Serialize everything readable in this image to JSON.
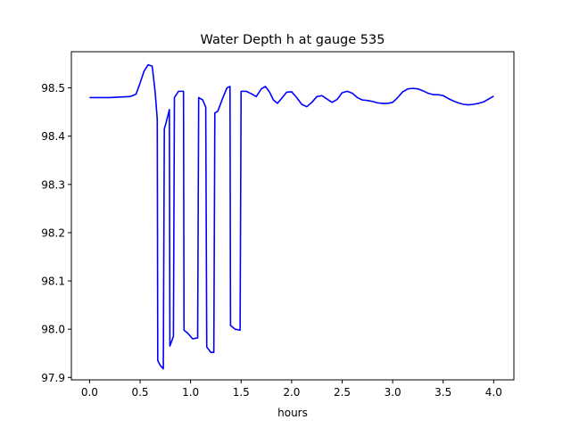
{
  "chart_data": {
    "type": "line",
    "title": "Water Depth h at gauge 535",
    "xlabel": "hours",
    "ylabel": "",
    "xlim": [
      -0.18,
      4.2
    ],
    "ylim": [
      97.895,
      98.575
    ],
    "xticks": [
      0.0,
      0.5,
      1.0,
      1.5,
      2.0,
      2.5,
      3.0,
      3.5,
      4.0
    ],
    "xtick_labels": [
      "0.0",
      "0.5",
      "1.0",
      "1.5",
      "2.0",
      "2.5",
      "3.0",
      "3.5",
      "4.0"
    ],
    "yticks": [
      97.9,
      98.0,
      98.1,
      98.2,
      98.3,
      98.4,
      98.5
    ],
    "ytick_labels": [
      "97.9",
      "98.0",
      "98.1",
      "98.2",
      "98.3",
      "98.4",
      "98.5"
    ],
    "grid": false,
    "color": "#0000ff",
    "series": [
      {
        "x": [
          0.0,
          0.2,
          0.4,
          0.46,
          0.5,
          0.54,
          0.58,
          0.62,
          0.65,
          0.67,
          0.675,
          0.7,
          0.73,
          0.74,
          0.76,
          0.79,
          0.795,
          0.83,
          0.84,
          0.88,
          0.93,
          0.935,
          0.97,
          1.02,
          1.07,
          1.08,
          1.12,
          1.15,
          1.16,
          1.2,
          1.23,
          1.24,
          1.27,
          1.32,
          1.36,
          1.39,
          1.395,
          1.44,
          1.49,
          1.5,
          1.55,
          1.6,
          1.65,
          1.7,
          1.74,
          1.78,
          1.82,
          1.86,
          1.9,
          1.95,
          2.0,
          2.05,
          2.1,
          2.15,
          2.2,
          2.25,
          2.3,
          2.35,
          2.4,
          2.45,
          2.5,
          2.55,
          2.6,
          2.65,
          2.7,
          2.75,
          2.8,
          2.85,
          2.9,
          2.95,
          3.0,
          3.05,
          3.1,
          3.15,
          3.2,
          3.25,
          3.3,
          3.35,
          3.4,
          3.45,
          3.5,
          3.55,
          3.6,
          3.65,
          3.7,
          3.75,
          3.8,
          3.85,
          3.9,
          3.95,
          4.0
        ],
        "y": [
          98.48,
          98.48,
          98.482,
          98.487,
          98.51,
          98.535,
          98.548,
          98.545,
          98.49,
          98.435,
          97.935,
          97.925,
          97.918,
          98.415,
          98.43,
          98.455,
          97.965,
          97.985,
          98.48,
          98.493,
          98.493,
          97.998,
          97.992,
          97.98,
          97.982,
          98.48,
          98.475,
          98.46,
          97.963,
          97.952,
          97.952,
          98.448,
          98.452,
          98.48,
          98.5,
          98.503,
          98.008,
          98.0,
          97.998,
          98.493,
          98.493,
          98.488,
          98.482,
          98.498,
          98.503,
          98.492,
          98.475,
          98.468,
          98.478,
          98.491,
          98.492,
          98.48,
          98.466,
          98.461,
          98.47,
          98.482,
          98.484,
          98.477,
          98.47,
          98.476,
          98.49,
          98.493,
          98.489,
          98.48,
          98.475,
          98.474,
          98.472,
          98.469,
          98.468,
          98.468,
          98.47,
          98.48,
          98.492,
          98.498,
          98.499,
          98.498,
          98.494,
          98.489,
          98.486,
          98.486,
          98.484,
          98.478,
          98.473,
          98.469,
          98.466,
          98.465,
          98.466,
          98.468,
          98.471,
          98.477,
          98.483
        ]
      }
    ]
  }
}
